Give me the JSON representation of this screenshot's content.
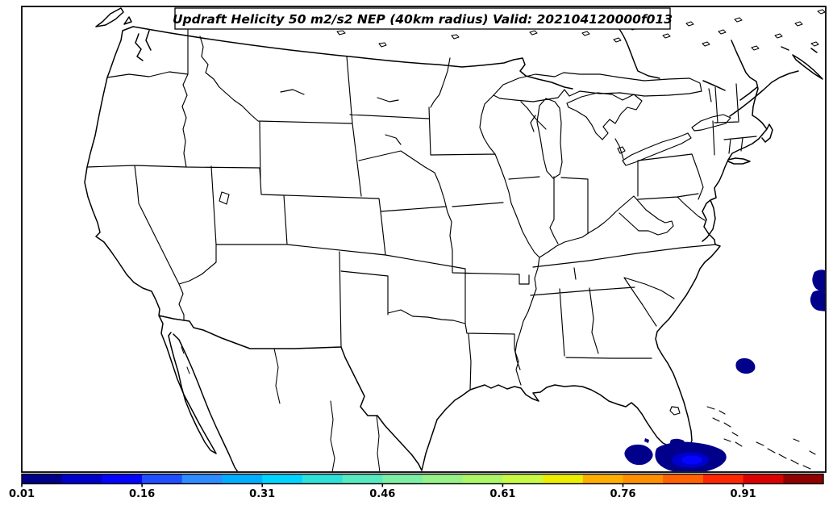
{
  "title": {
    "text": "Updraft Helicity 50 m2/s2 NEP (40km radius) Valid: 202104120000f013"
  },
  "chart_data": {
    "type": "map",
    "subtype": "filled-probability-contours-over-basemap",
    "field": "Updraft Helicity 50 m2/s2 Neighborhood Ensemble Probability (NEP), 40km radius",
    "valid_time": "202104120000f013",
    "basemap": "CONUS state outlines with southern Canada, northern Mexico, Great Lakes, Cuba and Bahamas; black outlines on white",
    "colorbar": {
      "orientation": "horizontal",
      "position": "bottom",
      "range": [
        0.01,
        1.01
      ],
      "step": 0.05,
      "tick_labels": [
        "0.01",
        "0.16",
        "0.31",
        "0.46",
        "0.61",
        "0.76",
        "0.91"
      ],
      "tick_values": [
        0.01,
        0.16,
        0.31,
        0.46,
        0.61,
        0.76,
        0.91
      ],
      "colors": [
        "#00008b",
        "#0000cd",
        "#0404ff",
        "#1e50ff",
        "#2e8cff",
        "#00b0ff",
        "#00d5ff",
        "#2fe1d8",
        "#58e9c0",
        "#7eeea4",
        "#98f288",
        "#adf669",
        "#c8fa46",
        "#eeee00",
        "#ffaf00",
        "#ff9000",
        "#ff6200",
        "#ff2600",
        "#dd0000",
        "#920000"
      ]
    },
    "regions": [
      {
        "name": "maximum south of Florida over Cuba, outer 0.01 contour",
        "color": "#00008b"
      },
      {
        "name": "Cuba maximum, 0.06 contour",
        "color": "#0000cd"
      },
      {
        "name": "Cuba maximum core, 0.11 contour",
        "color": "#0404ff"
      },
      {
        "name": "Atlantic blob northeast of Bahamas, 0.01",
        "color": "#00008b"
      },
      {
        "name": "right-edge blob north, 0.01",
        "color": "#00008b"
      },
      {
        "name": "right-edge blob south, 0.01",
        "color": "#00008b"
      }
    ]
  }
}
